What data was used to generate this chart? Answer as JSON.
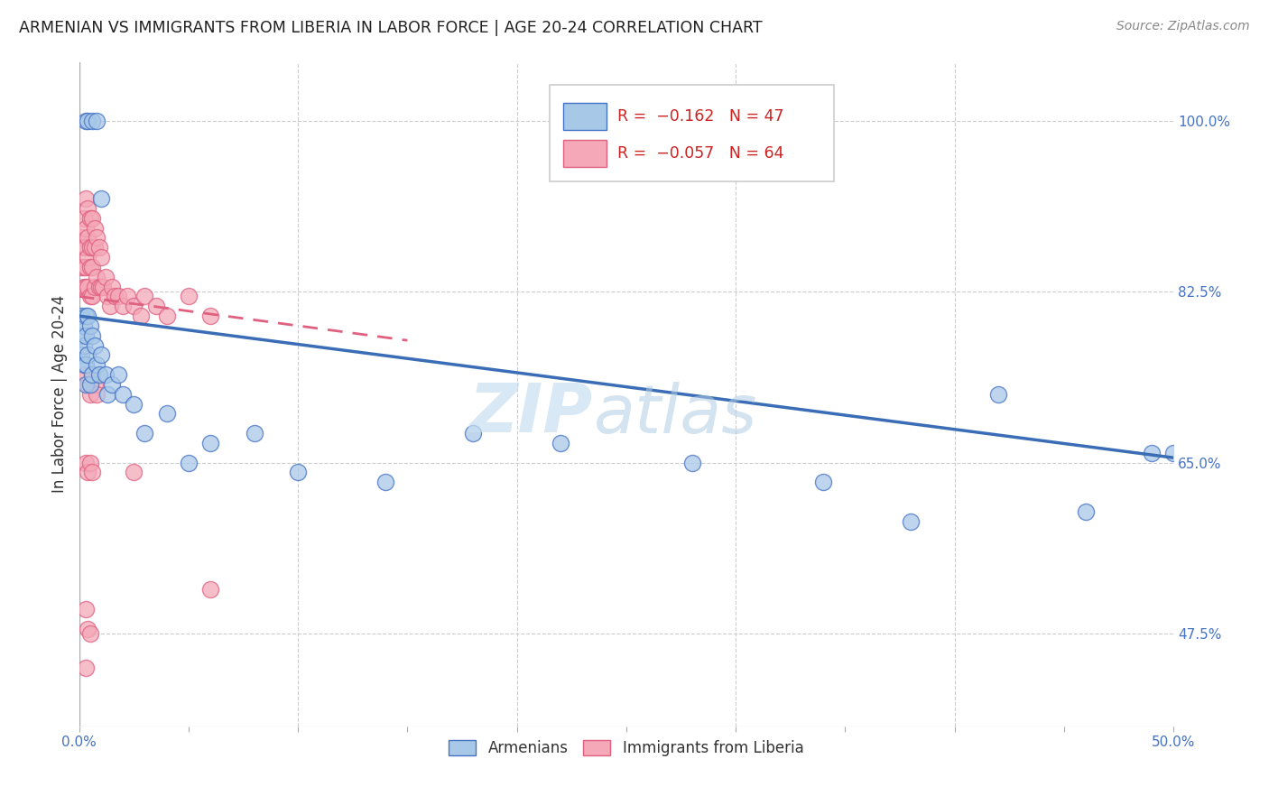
{
  "title": "ARMENIAN VS IMMIGRANTS FROM LIBERIA IN LABOR FORCE | AGE 20-24 CORRELATION CHART",
  "source": "Source: ZipAtlas.com",
  "ylabel": "In Labor Force | Age 20-24",
  "ytick_values": [
    0.475,
    0.65,
    0.825,
    1.0
  ],
  "ytick_labels": [
    "47.5%",
    "65.0%",
    "82.5%",
    "100.0%"
  ],
  "xlim": [
    0.0,
    0.5
  ],
  "ylim": [
    0.38,
    1.06
  ],
  "watermark_zip": "ZIP",
  "watermark_atlas": "atlas",
  "blue_fill": "#A8C8E8",
  "blue_edge": "#4472C4",
  "pink_fill": "#F4A8B8",
  "pink_edge": "#E06080",
  "blue_line": "#3A6DB5",
  "pink_line": "#E06080",
  "arm_x": [
    0.001,
    0.001,
    0.001,
    0.002,
    0.002,
    0.002,
    0.003,
    0.003,
    0.003,
    0.003,
    0.004,
    0.004,
    0.005,
    0.005,
    0.006,
    0.006,
    0.007,
    0.008,
    0.009,
    0.01,
    0.012,
    0.013,
    0.015,
    0.018,
    0.02,
    0.025,
    0.03,
    0.04,
    0.05,
    0.06,
    0.08,
    0.1,
    0.14,
    0.18,
    0.22,
    0.28,
    0.34,
    0.38,
    0.42,
    0.46,
    0.003,
    0.004,
    0.006,
    0.008,
    0.01,
    0.49,
    0.5
  ],
  "arm_y": [
    0.8,
    0.78,
    0.76,
    0.79,
    0.77,
    0.75,
    0.8,
    0.78,
    0.75,
    0.73,
    0.8,
    0.76,
    0.79,
    0.73,
    0.78,
    0.74,
    0.77,
    0.75,
    0.74,
    0.76,
    0.74,
    0.72,
    0.73,
    0.74,
    0.72,
    0.71,
    0.68,
    0.7,
    0.65,
    0.67,
    0.68,
    0.64,
    0.63,
    0.68,
    0.67,
    0.65,
    0.63,
    0.59,
    0.72,
    0.6,
    1.0,
    1.0,
    1.0,
    1.0,
    0.92,
    0.66,
    0.66
  ],
  "lib_x": [
    0.001,
    0.001,
    0.002,
    0.002,
    0.002,
    0.002,
    0.003,
    0.003,
    0.003,
    0.003,
    0.003,
    0.004,
    0.004,
    0.004,
    0.004,
    0.005,
    0.005,
    0.005,
    0.005,
    0.006,
    0.006,
    0.006,
    0.006,
    0.007,
    0.007,
    0.007,
    0.008,
    0.008,
    0.009,
    0.009,
    0.01,
    0.01,
    0.011,
    0.012,
    0.013,
    0.014,
    0.015,
    0.016,
    0.018,
    0.02,
    0.022,
    0.025,
    0.028,
    0.03,
    0.035,
    0.04,
    0.05,
    0.06,
    0.003,
    0.004,
    0.005,
    0.006,
    0.007,
    0.008,
    0.003,
    0.004,
    0.005,
    0.006,
    0.003,
    0.004,
    0.005,
    0.003,
    0.025,
    0.06
  ],
  "lib_y": [
    0.88,
    0.85,
    0.9,
    0.87,
    0.85,
    0.83,
    0.92,
    0.89,
    0.87,
    0.85,
    0.83,
    0.91,
    0.88,
    0.86,
    0.83,
    0.9,
    0.87,
    0.85,
    0.82,
    0.9,
    0.87,
    0.85,
    0.82,
    0.89,
    0.87,
    0.83,
    0.88,
    0.84,
    0.87,
    0.83,
    0.86,
    0.83,
    0.83,
    0.84,
    0.82,
    0.81,
    0.83,
    0.82,
    0.82,
    0.81,
    0.82,
    0.81,
    0.8,
    0.82,
    0.81,
    0.8,
    0.82,
    0.8,
    0.74,
    0.73,
    0.72,
    0.74,
    0.73,
    0.72,
    0.65,
    0.64,
    0.65,
    0.64,
    0.5,
    0.48,
    0.475,
    0.44,
    0.64,
    0.52
  ],
  "arm_trendline_x0": 0.0,
  "arm_trendline_y0": 0.8,
  "arm_trendline_x1": 0.5,
  "arm_trendline_y1": 0.655,
  "lib_trendline_x0": 0.0,
  "lib_trendline_y0": 0.82,
  "lib_trendline_x1": 0.15,
  "lib_trendline_y1": 0.775
}
